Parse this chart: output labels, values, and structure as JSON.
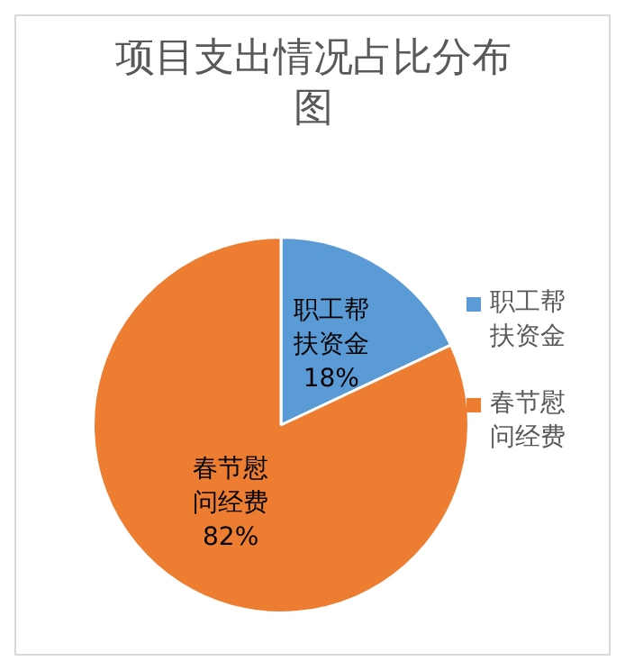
{
  "chart_data": {
    "type": "pie",
    "title": "项目支出情况占比分布图",
    "categories": [
      "职工帮扶资金",
      "春节慰问经费"
    ],
    "values": [
      18,
      82
    ],
    "value_labels": [
      "18%",
      "82%"
    ],
    "colors": [
      "#5b9bd5",
      "#ed7d31"
    ],
    "legend": "right"
  }
}
